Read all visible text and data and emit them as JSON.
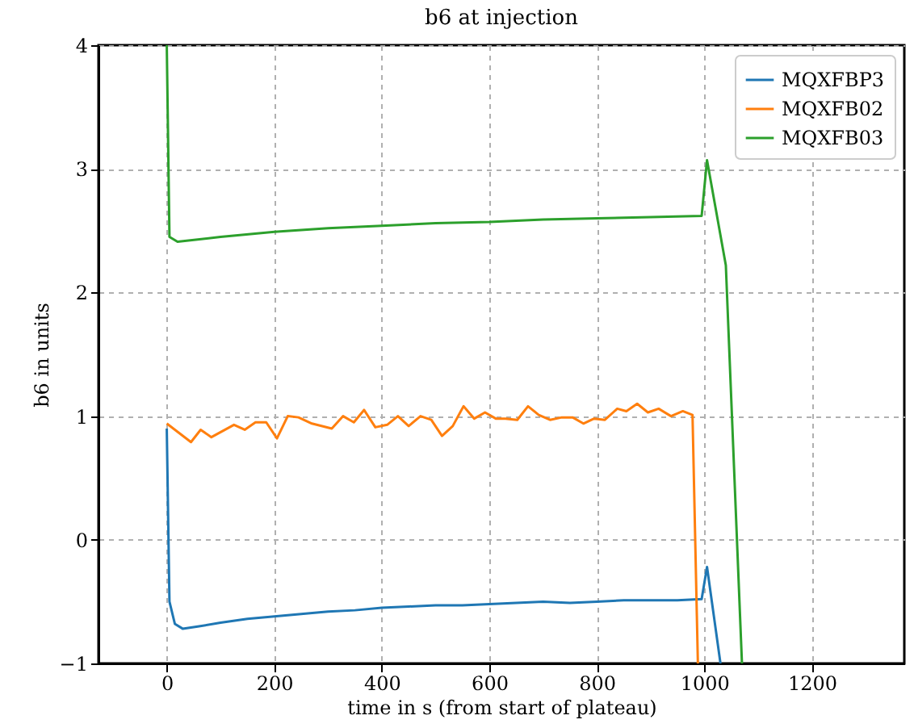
{
  "chart_data": {
    "type": "line",
    "title": "b6 at injection",
    "xlabel": "time in s (from start of plateau)",
    "ylabel": "b6 in units",
    "xlim": [
      -127,
      1372
    ],
    "ylim": [
      -1,
      4
    ],
    "xticks": [
      0,
      200,
      400,
      600,
      800,
      1000,
      1200
    ],
    "yticks": [
      -1,
      0,
      1,
      2,
      3,
      4
    ],
    "grid": true,
    "legend": "top right",
    "line_style": "solid",
    "marker": "none",
    "series": [
      {
        "name": "MQXFBP3",
        "color": "#1f77b4",
        "x": [
          0,
          5,
          15,
          30,
          60,
          100,
          150,
          200,
          250,
          300,
          350,
          400,
          450,
          500,
          550,
          600,
          650,
          700,
          750,
          800,
          850,
          900,
          950,
          995,
          1005,
          1030
        ],
        "values": [
          0.9,
          -0.5,
          -0.68,
          -0.72,
          -0.7,
          -0.67,
          -0.64,
          -0.62,
          -0.6,
          -0.58,
          -0.57,
          -0.55,
          -0.54,
          -0.53,
          -0.53,
          -0.52,
          -0.51,
          -0.5,
          -0.51,
          -0.5,
          -0.49,
          -0.49,
          -0.49,
          -0.48,
          -0.22,
          -1
        ]
      },
      {
        "name": "MQXFB02",
        "color": "#ff7f0e",
        "x": [
          0,
          45,
          63,
          83,
          125,
          145,
          165,
          185,
          205,
          225,
          245,
          270,
          307,
          328,
          348,
          367,
          388,
          410,
          430,
          450,
          472,
          492,
          512,
          532,
          552,
          572,
          592,
          612,
          630,
          652,
          672,
          692,
          713,
          735,
          755,
          775,
          795,
          815,
          838,
          855,
          875,
          895,
          915,
          938,
          960,
          978,
          988
        ],
        "values": [
          0.94,
          0.79,
          0.89,
          0.83,
          0.93,
          0.89,
          0.95,
          0.95,
          0.82,
          1.0,
          0.99,
          0.94,
          0.9,
          1.0,
          0.95,
          1.05,
          0.91,
          0.93,
          1.0,
          0.92,
          1.0,
          0.97,
          0.84,
          0.92,
          1.08,
          0.98,
          1.03,
          0.98,
          0.98,
          0.97,
          1.08,
          1.01,
          0.97,
          0.99,
          0.99,
          0.94,
          0.98,
          0.97,
          1.06,
          1.04,
          1.1,
          1.03,
          1.06,
          1.0,
          1.04,
          1.01,
          -1
        ]
      },
      {
        "name": "MQXFB03",
        "color": "#2ca02c",
        "x": [
          0,
          5,
          20,
          100,
          200,
          300,
          400,
          500,
          600,
          700,
          800,
          900,
          995,
          1005,
          1040,
          1070
        ],
        "values": [
          4,
          2.45,
          2.41,
          2.45,
          2.49,
          2.52,
          2.54,
          2.56,
          2.57,
          2.59,
          2.6,
          2.61,
          2.62,
          3.07,
          2.22,
          -1
        ]
      }
    ]
  }
}
